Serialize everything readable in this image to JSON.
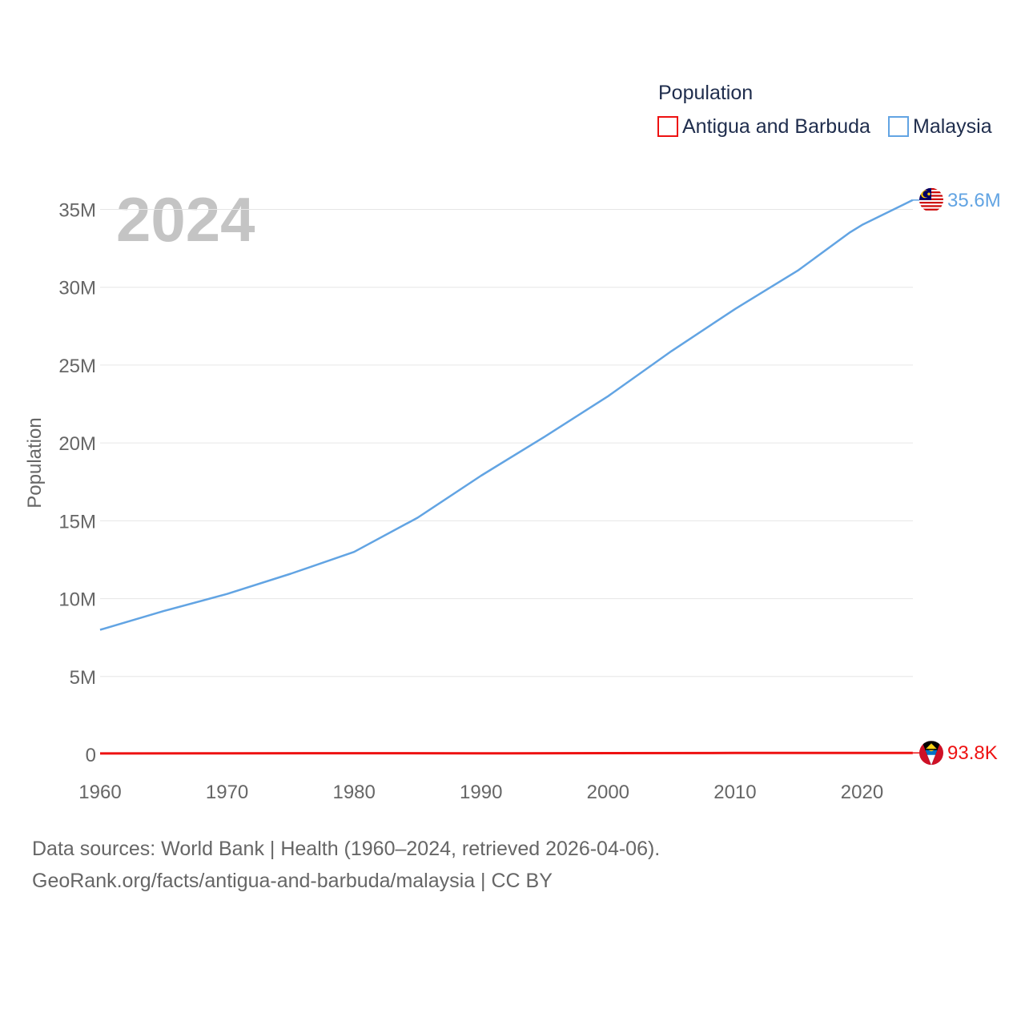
{
  "legend": {
    "title": "Population",
    "items": [
      {
        "name": "Antigua and Barbuda",
        "color": "#ee1111"
      },
      {
        "name": "Malaysia",
        "color": "#62a4e3"
      }
    ]
  },
  "year_label": "2024",
  "footer": {
    "line1": "Data sources: World Bank | Health (1960–2024, retrieved 2026-04-06).",
    "line2": "GeoRank.org/facts/antigua-and-barbuda/malaysia | CC BY"
  },
  "chart_data": {
    "type": "line",
    "ylabel": "Population",
    "xlabel": "",
    "xlim": [
      1960,
      2024
    ],
    "ylim": [
      0,
      36000000
    ],
    "x_ticks": [
      1960,
      1970,
      1980,
      1990,
      2000,
      2010,
      2020
    ],
    "y_ticks": [
      {
        "value": 0,
        "label": "0"
      },
      {
        "value": 5000000,
        "label": "5M"
      },
      {
        "value": 10000000,
        "label": "10M"
      },
      {
        "value": 15000000,
        "label": "15M"
      },
      {
        "value": 20000000,
        "label": "20M"
      },
      {
        "value": 25000000,
        "label": "25M"
      },
      {
        "value": 30000000,
        "label": "30M"
      },
      {
        "value": 35000000,
        "label": "35M"
      }
    ],
    "grid": true,
    "series": [
      {
        "name": "Malaysia",
        "color": "#62a4e3",
        "end_label": "35.6M",
        "flag": "malaysia-flag-icon",
        "points": [
          [
            1960,
            8000000
          ],
          [
            1965,
            9200000
          ],
          [
            1970,
            10300000
          ],
          [
            1975,
            11600000
          ],
          [
            1980,
            13000000
          ],
          [
            1985,
            15200000
          ],
          [
            1990,
            17900000
          ],
          [
            1995,
            20400000
          ],
          [
            2000,
            23000000
          ],
          [
            2005,
            25900000
          ],
          [
            2010,
            28600000
          ],
          [
            2015,
            31100000
          ],
          [
            2019,
            33500000
          ],
          [
            2020,
            34000000
          ],
          [
            2024,
            35600000
          ]
        ]
      },
      {
        "name": "Antigua and Barbuda",
        "color": "#ee1111",
        "end_label": "93.8K",
        "flag": "antigua-and-barbuda-flag-icon",
        "points": [
          [
            1960,
            55000
          ],
          [
            1970,
            66000
          ],
          [
            1980,
            70000
          ],
          [
            1990,
            63000
          ],
          [
            2000,
            76000
          ],
          [
            2010,
            86000
          ],
          [
            2020,
            92000
          ],
          [
            2024,
            93800
          ]
        ]
      }
    ]
  }
}
